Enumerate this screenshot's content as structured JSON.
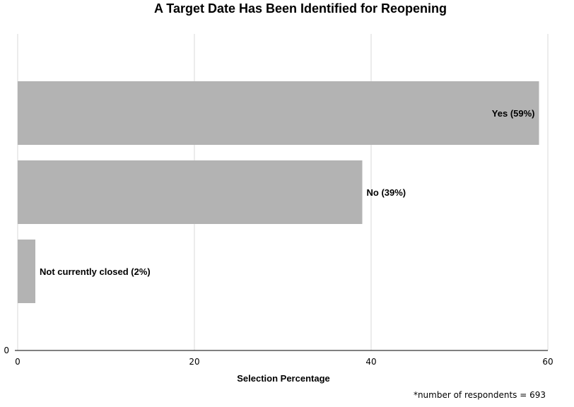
{
  "chart_data": {
    "type": "bar",
    "orientation": "horizontal",
    "title": "A Target Date Has Been Identified for Reopening",
    "xlabel": "Selection Percentage",
    "ylabel": "",
    "categories": [
      "Yes",
      "No",
      "Not currently closed"
    ],
    "values": [
      59,
      39,
      2
    ],
    "data_labels": [
      "Yes (59%)",
      "No (39%)",
      "Not currently closed (2%)"
    ],
    "xlim": [
      0,
      60
    ],
    "x_ticks": [
      0,
      20,
      40,
      60
    ],
    "y_tick_labels": [
      "0"
    ],
    "grid": "vertical",
    "bar_color": "#b3b3b3",
    "grid_color": "#d9d9d9",
    "footnote": "*number of respondents = 693"
  }
}
